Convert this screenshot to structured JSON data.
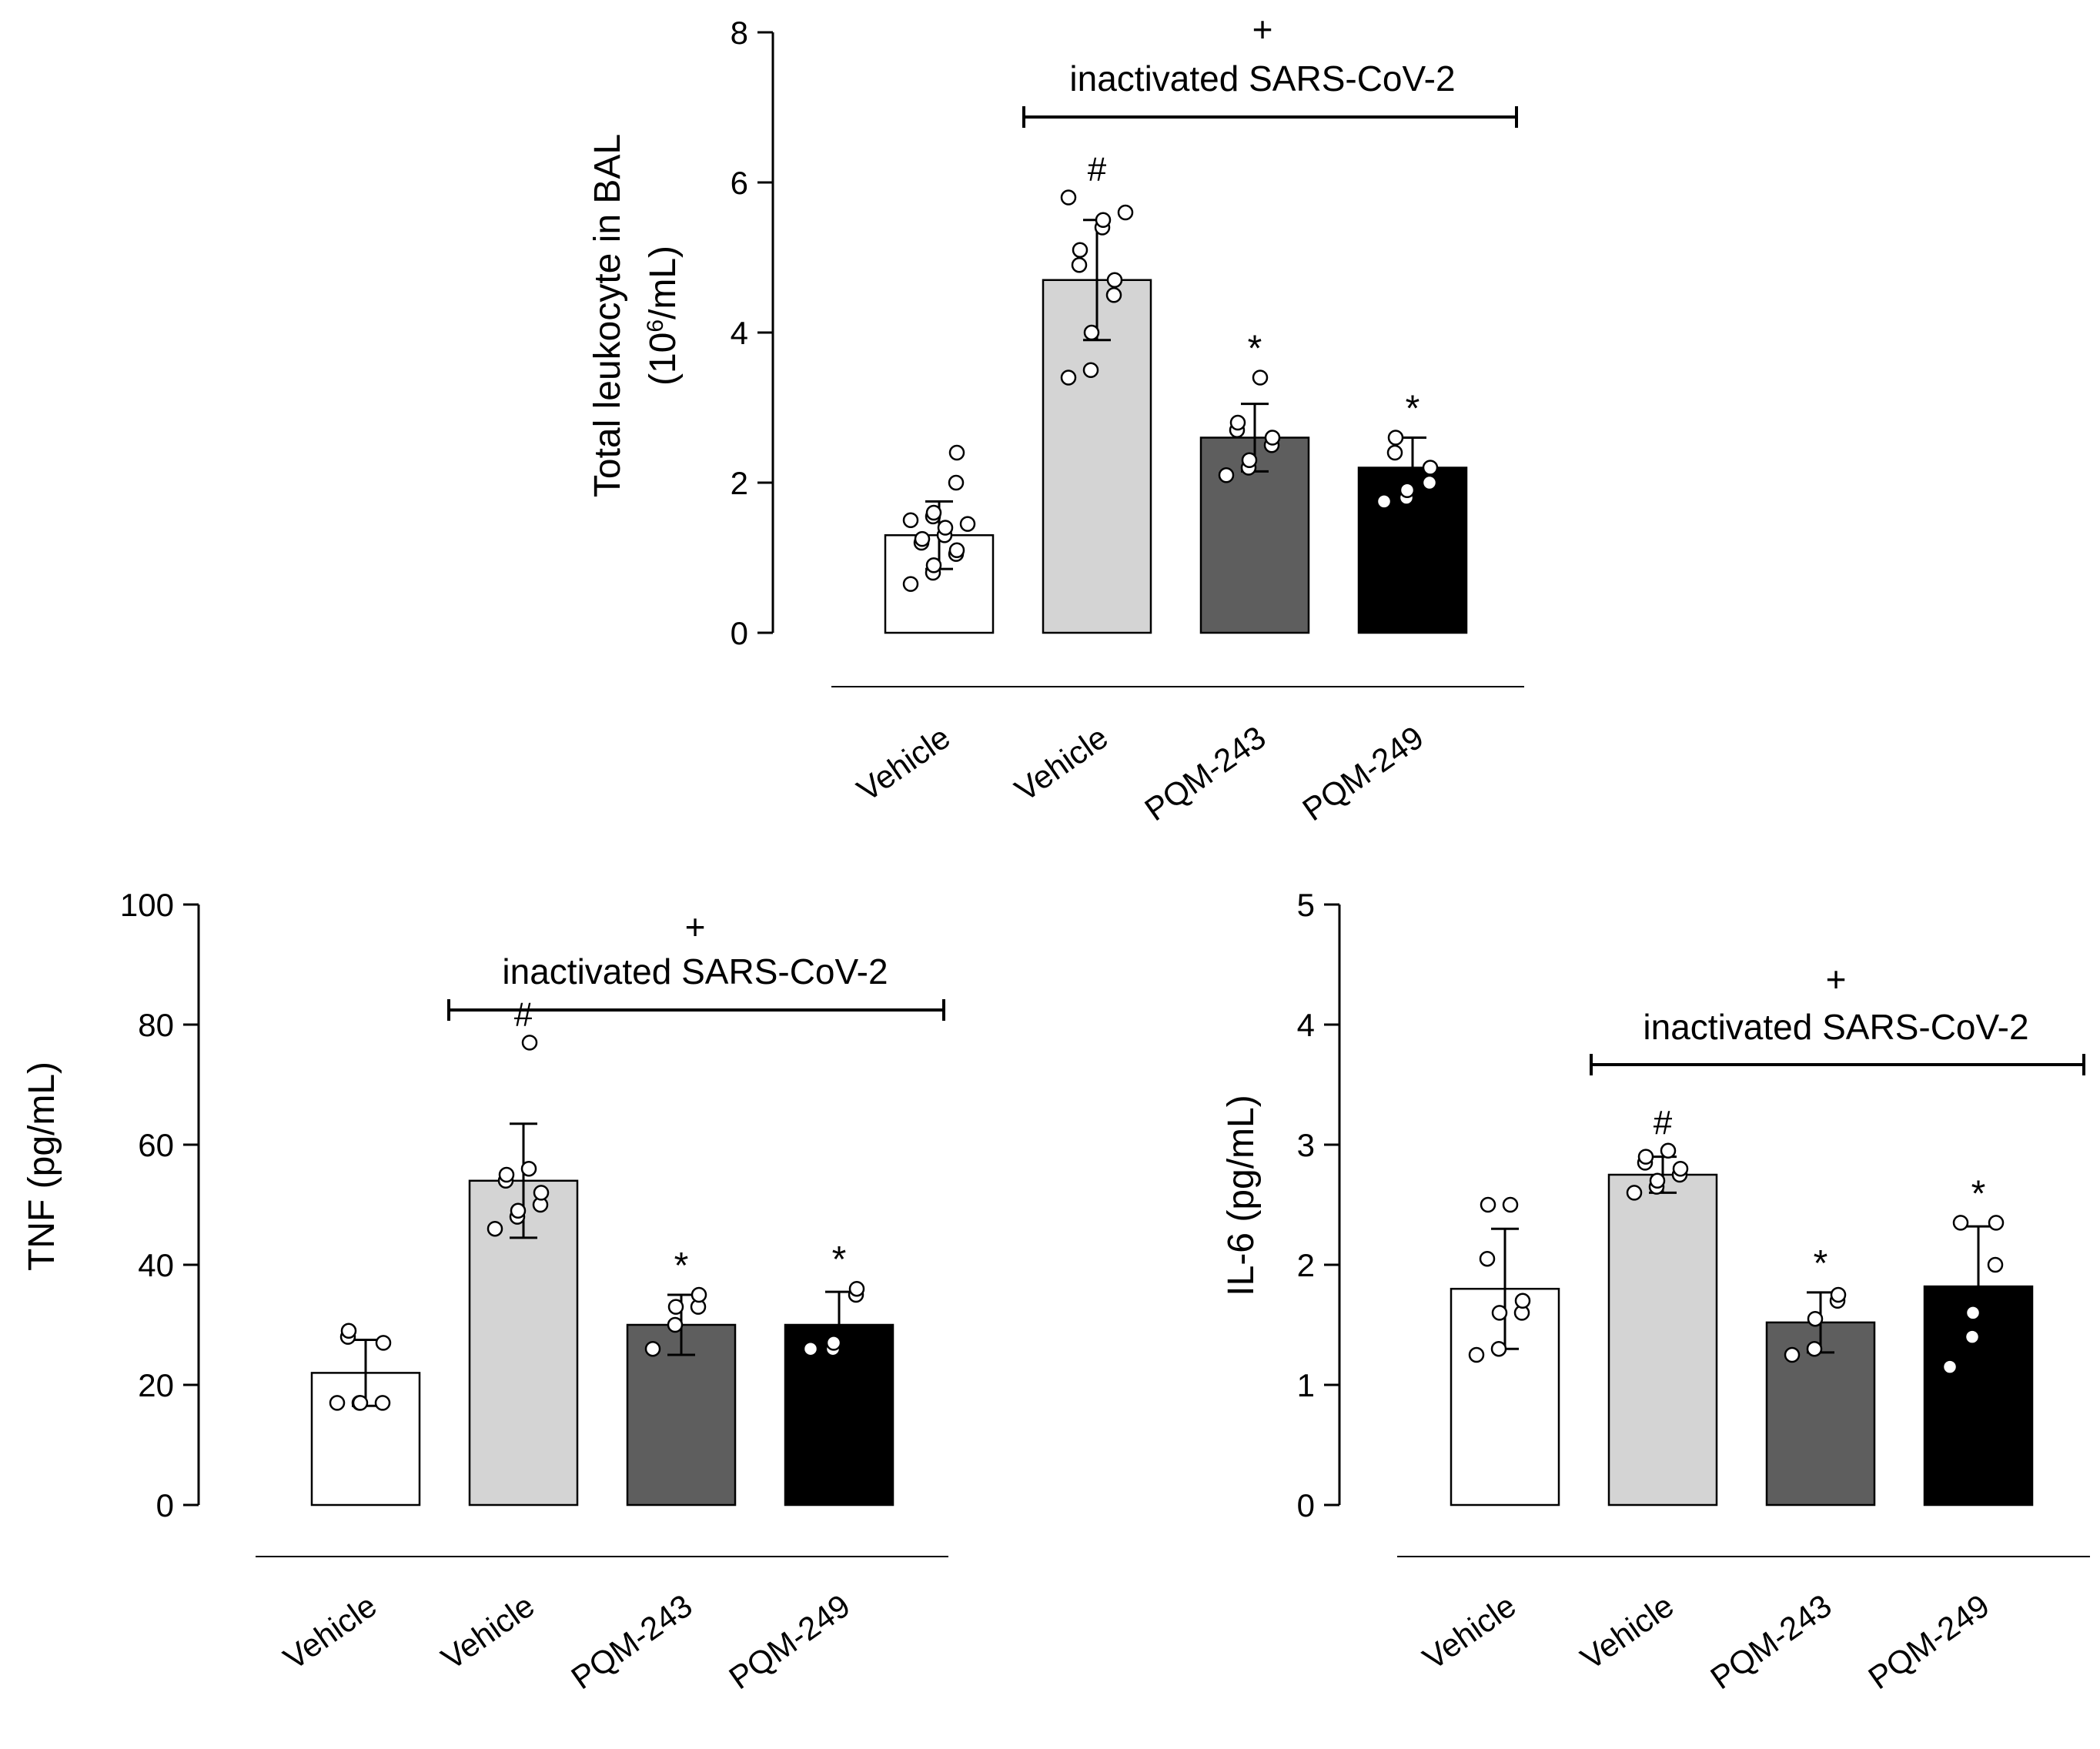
{
  "chart_data": [
    {
      "type": "bar",
      "title": "",
      "ylabel": "Total leukocyte in BAL",
      "ylabel_line2_pre": "(10",
      "ylabel_line2_sup": "6",
      "ylabel_line2_post": "/mL)",
      "xlabel": "",
      "ylim": [
        0,
        8
      ],
      "yticks": [
        "0",
        "2",
        "4",
        "6",
        "8"
      ],
      "categories": [
        "Vehicle",
        "Vehicle",
        "PQM-243",
        "PQM-249"
      ],
      "colors": [
        "#ffffff",
        "#d4d4d4",
        "#5e5e5e",
        "#000000"
      ],
      "values": [
        1.3,
        4.7,
        2.6,
        2.2
      ],
      "errors": [
        0.45,
        0.8,
        0.45,
        0.4
      ],
      "significance": [
        "",
        "#",
        "*",
        "*"
      ],
      "points": [
        [
          0.65,
          0.8,
          0.9,
          1.05,
          1.1,
          1.2,
          1.25,
          1.3,
          1.4,
          1.45,
          1.5,
          1.55,
          1.6,
          2.0,
          2.4
        ],
        [
          3.4,
          3.5,
          4.0,
          4.5,
          4.7,
          4.9,
          5.1,
          5.4,
          5.5,
          5.6,
          5.8
        ],
        [
          2.1,
          2.2,
          2.3,
          2.5,
          2.6,
          2.7,
          2.8,
          3.4
        ],
        [
          1.75,
          1.8,
          1.9,
          2.0,
          2.2,
          2.4,
          2.6
        ]
      ],
      "bracket_label_line1": "+",
      "bracket_label_line2": "inactivated SARS-CoV-2"
    },
    {
      "type": "bar",
      "title": "",
      "ylabel": "TNF (pg/mL)",
      "xlabel": "",
      "ylim": [
        0,
        100
      ],
      "yticks": [
        "0",
        "20",
        "40",
        "60",
        "80",
        "100"
      ],
      "categories": [
        "Vehicle",
        "Vehicle",
        "PQM-243",
        "PQM-249"
      ],
      "colors": [
        "#ffffff",
        "#d4d4d4",
        "#5e5e5e",
        "#000000"
      ],
      "values": [
        22,
        54,
        30,
        30
      ],
      "errors": [
        5.5,
        9.5,
        5,
        5.5
      ],
      "significance": [
        "",
        "#",
        "*",
        "*"
      ],
      "points": [
        [
          17,
          17,
          17,
          17,
          27,
          28,
          29
        ],
        [
          46,
          48,
          49,
          50,
          52,
          54,
          55,
          56,
          77
        ],
        [
          26,
          30,
          33,
          33,
          35
        ],
        [
          26,
          26,
          27,
          35,
          36
        ]
      ],
      "bracket_label_line1": "+",
      "bracket_label_line2": "inactivated SARS-CoV-2"
    },
    {
      "type": "bar",
      "title": "",
      "ylabel": "IL-6 (pg/mL)",
      "xlabel": "",
      "ylim": [
        0,
        5
      ],
      "yticks": [
        "0",
        "1",
        "2",
        "3",
        "4",
        "5"
      ],
      "categories": [
        "Vehicle",
        "Vehicle",
        "PQM-243",
        "PQM-249"
      ],
      "colors": [
        "#ffffff",
        "#d4d4d4",
        "#5e5e5e",
        "#000000"
      ],
      "values": [
        1.8,
        2.75,
        1.52,
        1.82
      ],
      "errors": [
        0.5,
        0.15,
        0.25,
        0.5
      ],
      "significance": [
        "",
        "#",
        "*",
        "*"
      ],
      "points": [
        [
          1.25,
          1.3,
          1.6,
          1.6,
          1.7,
          2.05,
          2.5,
          2.5
        ],
        [
          2.6,
          2.65,
          2.7,
          2.75,
          2.8,
          2.85,
          2.9,
          2.95
        ],
        [
          1.25,
          1.3,
          1.55,
          1.7,
          1.75
        ],
        [
          1.15,
          1.4,
          1.6,
          2.0,
          2.35,
          2.35
        ]
      ],
      "bracket_label_line1": "+",
      "bracket_label_line2": "inactivated SARS-CoV-2"
    }
  ]
}
